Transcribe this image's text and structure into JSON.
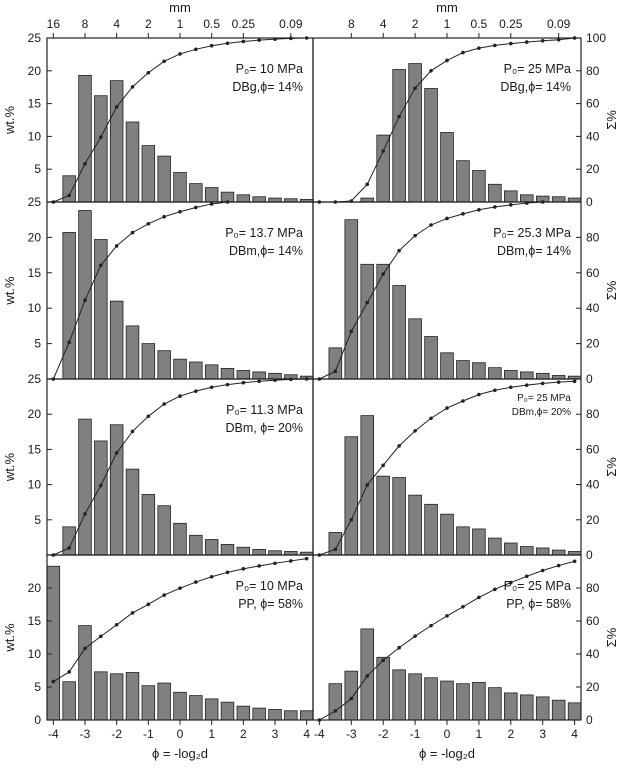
{
  "chart_data": [
    {
      "type": "bar",
      "panel": "top-left",
      "annotation": {
        "pressure": "P₀= 10 MPa",
        "sample": "DBg,ϕ= 14%"
      },
      "x": [
        -3.5,
        -3,
        -2.5,
        -2,
        -1.5,
        -1,
        -0.5,
        0,
        0.5,
        1,
        1.5,
        2,
        2.5,
        3,
        3.5,
        4
      ],
      "values": [
        4,
        19.3,
        16.2,
        18.5,
        12.2,
        8.6,
        7,
        4.5,
        2.8,
        2.2,
        1.5,
        1.1,
        0.8,
        0.6,
        0.5,
        0.4
      ],
      "cumulative": [
        0,
        4,
        23.3,
        39.5,
        58,
        70.2,
        78.8,
        85.8,
        90.3,
        93.1,
        95.3,
        96.8,
        97.9,
        98.7,
        99.3,
        99.8,
        100
      ]
    },
    {
      "type": "bar",
      "panel": "top-right",
      "annotation": {
        "pressure": "P₀= 25 MPa",
        "sample": "DBg,ϕ= 14%"
      },
      "x": [
        -3.5,
        -3,
        -2.5,
        -2,
        -1.5,
        -1,
        -0.5,
        0,
        0.5,
        1,
        1.5,
        2,
        2.5,
        3,
        3.5,
        4
      ],
      "values": [
        0,
        0,
        0.6,
        10.2,
        20.2,
        21.1,
        17.3,
        10.6,
        6.3,
        4.8,
        2.7,
        1.7,
        1.1,
        0.9,
        0.8,
        0.6
      ],
      "cumulative": [
        0,
        0,
        0.6,
        10.8,
        31,
        52.1,
        69.4,
        80,
        86.3,
        91.1,
        93.8,
        95.5,
        96.6,
        97.5,
        98.3,
        98.9,
        100
      ]
    },
    {
      "type": "bar",
      "panel": "row2-left",
      "annotation": {
        "pressure": "P₀= 13.7 MPa",
        "sample": "DBm,ϕ= 14%"
      },
      "x": [
        -3.5,
        -3,
        -2.5,
        -2,
        -1.5,
        -1,
        -0.5,
        0,
        0.5,
        1,
        1.5,
        2,
        2.5,
        3,
        3.5,
        4
      ],
      "values": [
        20.7,
        23.8,
        19.7,
        11,
        7.5,
        5,
        4,
        2.8,
        2.4,
        2,
        1.5,
        1.2,
        1,
        0.8,
        0.6,
        0.4
      ],
      "cumulative": [
        0,
        20.7,
        44.5,
        64.2,
        75.2,
        82.7,
        87.7,
        91.7,
        94.5,
        96.9,
        98.9,
        100
      ]
    },
    {
      "type": "bar",
      "panel": "row2-right",
      "annotation": {
        "pressure": "P₀= 25.3 MPa",
        "sample": "DBm,ϕ= 14%"
      },
      "x": [
        -3.5,
        -3,
        -2.5,
        -2,
        -1.5,
        -1,
        -0.5,
        0,
        0.5,
        1,
        1.5,
        2,
        2.5,
        3,
        3.5,
        4
      ],
      "values": [
        4.4,
        22.5,
        16.2,
        16.2,
        13.2,
        8.5,
        6,
        3.7,
        2.6,
        2.3,
        1.6,
        1.2,
        1,
        0.8,
        0.5,
        0.4
      ],
      "cumulative": [
        0,
        4.4,
        26.9,
        43.1,
        59.3,
        72.5,
        81,
        87,
        90.7,
        93.3,
        95.6,
        97.2,
        98.4,
        99.4,
        100
      ]
    },
    {
      "type": "bar",
      "panel": "row3-left",
      "annotation": {
        "pressure": "P₀= 11.3 MPa",
        "sample": "DBm, ϕ= 20%"
      },
      "x": [
        -3.5,
        -3,
        -2.5,
        -2,
        -1.5,
        -1,
        -0.5,
        0,
        0.5,
        1,
        1.5,
        2,
        2.5,
        3,
        3.5,
        4
      ],
      "values": [
        4,
        19.3,
        16.2,
        18.5,
        12.2,
        8.6,
        7,
        4.5,
        2.8,
        2.2,
        1.5,
        1.1,
        0.8,
        0.6,
        0.5,
        0.4
      ],
      "cumulative": [
        0,
        4,
        23.3,
        39.5,
        58,
        70.2,
        78.8,
        85.8,
        90.3,
        93.1,
        95.3,
        96.8,
        97.9,
        98.7,
        99.3,
        99.8,
        100
      ]
    },
    {
      "type": "bar",
      "panel": "row3-right",
      "annotation": {
        "pressure": "P₀= 25 MPa",
        "sample": "DBm,ϕ= 20%"
      },
      "x": [
        -3.5,
        -3,
        -2.5,
        -2,
        -1.5,
        -1,
        -0.5,
        0,
        0.5,
        1,
        1.5,
        2,
        2.5,
        3,
        3.5,
        4
      ],
      "values": [
        3.2,
        16.8,
        19.8,
        11.2,
        11,
        8.5,
        7.2,
        5.8,
        4,
        3.7,
        2.4,
        1.7,
        1.2,
        1,
        0.7,
        0.5
      ],
      "cumulative": [
        0,
        3.2,
        20,
        39.8,
        51,
        62,
        70.5,
        77.7,
        83.5,
        87.5,
        91.2,
        93.6,
        95.3,
        96.5,
        97.5,
        98.2,
        98.7
      ]
    },
    {
      "type": "bar",
      "panel": "bottom-left",
      "annotation": {
        "pressure": "P₀= 10 MPa",
        "sample": "PP, ϕ= 58%"
      },
      "x": [
        -4,
        -3.5,
        -3,
        -2.5,
        -2,
        -1.5,
        -1,
        -0.5,
        0,
        0.5,
        1,
        1.5,
        2,
        2.5,
        3,
        3.5,
        4
      ],
      "values": [
        23.3,
        5.8,
        14.3,
        7.3,
        7,
        7.2,
        5.2,
        5.6,
        4.2,
        3.7,
        3.2,
        2.7,
        2.1,
        1.8,
        1.6,
        1.4,
        1.4
      ],
      "cumulative": [
        23.3,
        29.1,
        43.4,
        50.7,
        57.7,
        64.9,
        70.1,
        75.7,
        79.9,
        83.6,
        86.8,
        89.5,
        91.6,
        93.4,
        95,
        96.4,
        97.8
      ]
    },
    {
      "type": "bar",
      "panel": "bottom-right",
      "annotation": {
        "pressure": "P₀= 25 MPa",
        "sample": "PP, ϕ= 58%"
      },
      "x": [
        -3.5,
        -3,
        -2.5,
        -2,
        -1.5,
        -1,
        -0.5,
        0,
        0.5,
        1,
        1.5,
        2,
        2.5,
        3,
        3.5,
        4
      ],
      "values": [
        5.5,
        7.4,
        13.8,
        9.5,
        7.6,
        7,
        6.4,
        5.9,
        5.5,
        5.7,
        4.9,
        4.1,
        3.8,
        3.5,
        3,
        2.6
      ],
      "cumulative": [
        0,
        5.5,
        12.9,
        26.7,
        36.2,
        43.8,
        50.8,
        57.2,
        63.1,
        68.6,
        74.3,
        79.2,
        83.3,
        87.1,
        90.6,
        93.6,
        96.2
      ]
    }
  ],
  "axes": {
    "top_unit": "mm",
    "top_ticks": [
      "16",
      "8",
      "4",
      "2",
      "1",
      "0.5",
      "0.25",
      "0.09"
    ],
    "x_ticks": [
      "-4",
      "-3",
      "-2",
      "-1",
      "0",
      "1",
      "2",
      "3",
      "4"
    ],
    "left_ticks": [
      "25",
      "20",
      "15",
      "10",
      "5",
      "0"
    ],
    "left_ticks_bottom": [
      "20",
      "15",
      "10",
      "5",
      "0"
    ],
    "right_ticks": [
      "100",
      "80",
      "60",
      "40",
      "20",
      "0"
    ],
    "right_ticks_short": [
      "80",
      "60",
      "40",
      "20",
      "0"
    ],
    "ylabel_left": "wt.%",
    "ylabel_right": "Σ%",
    "xlabel": "ϕ = -log₂d",
    "xlim": [
      -4.2,
      4.2
    ],
    "ylim_wt": [
      0,
      25
    ],
    "ylim_cum": [
      0,
      100
    ]
  }
}
